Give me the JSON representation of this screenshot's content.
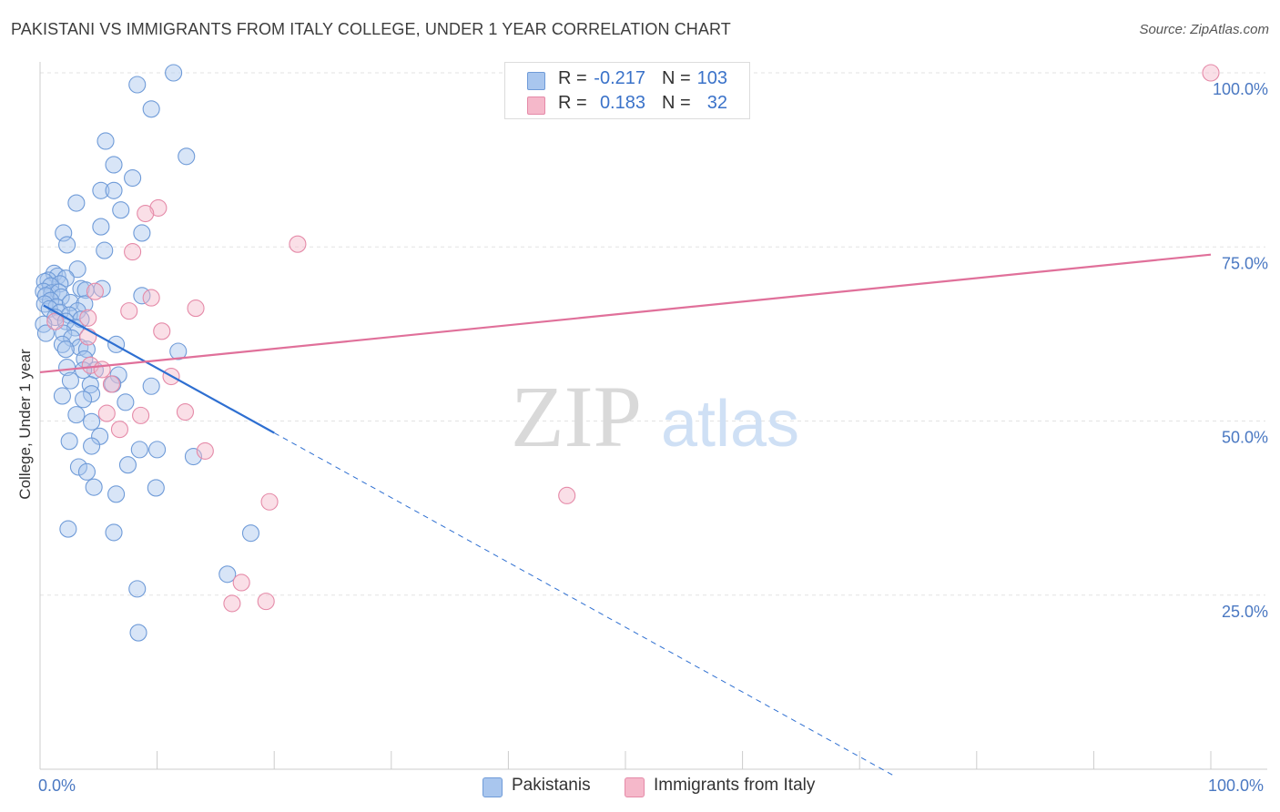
{
  "chart_data": {
    "type": "scatter",
    "title": "PAKISTANI VS IMMIGRANTS FROM ITALY COLLEGE, UNDER 1 YEAR CORRELATION CHART",
    "source": "Source: ZipAtlas.com",
    "xlabel": "",
    "ylabel": "College, Under 1 year",
    "xlim": [
      0,
      100
    ],
    "ylim": [
      0,
      100
    ],
    "x_tick_labels": [
      "0.0%",
      "100.0%"
    ],
    "y_ticks": [
      25,
      50,
      75,
      100
    ],
    "y_tick_labels": [
      "25.0%",
      "50.0%",
      "75.0%",
      "100.0%"
    ],
    "grid": true,
    "watermark": {
      "zip": "ZIP",
      "atlas": "atlas"
    },
    "legend_top": {
      "r_label": "R =",
      "n_label": "N =",
      "rows": [
        {
          "series": "Pakistanis",
          "r": "-0.217",
          "n": "103"
        },
        {
          "series": "Immigrants from Italy",
          "r": "0.183",
          "n": "32"
        }
      ]
    },
    "series": [
      {
        "name": "Pakistanis",
        "fill": "#a9c6ee",
        "stroke": "#6f9bd8",
        "trend_color": "#2e6fd1",
        "trend": {
          "x0": 0.3,
          "y0": 66.6,
          "x1": 20.0,
          "y1": 48.3,
          "dash_to_x": 73.0,
          "dash_to_y": -1.0
        },
        "points": [
          [
            11.4,
            100.0
          ],
          [
            8.3,
            98.3
          ],
          [
            9.5,
            94.8
          ],
          [
            5.6,
            90.2
          ],
          [
            12.5,
            88.0
          ],
          [
            6.3,
            86.8
          ],
          [
            7.9,
            84.9
          ],
          [
            5.2,
            83.1
          ],
          [
            6.3,
            83.1
          ],
          [
            3.1,
            81.3
          ],
          [
            6.9,
            80.3
          ],
          [
            5.2,
            77.9
          ],
          [
            2.0,
            77.0
          ],
          [
            8.7,
            77.0
          ],
          [
            2.3,
            75.3
          ],
          [
            5.5,
            74.5
          ],
          [
            3.2,
            71.8
          ],
          [
            1.2,
            71.2
          ],
          [
            1.5,
            70.8
          ],
          [
            2.2,
            70.5
          ],
          [
            0.7,
            70.2
          ],
          [
            0.4,
            70.0
          ],
          [
            1.7,
            69.7
          ],
          [
            0.9,
            69.4
          ],
          [
            3.5,
            69.0
          ],
          [
            5.3,
            69.0
          ],
          [
            3.9,
            68.8
          ],
          [
            0.3,
            68.6
          ],
          [
            1.0,
            68.4
          ],
          [
            1.6,
            68.5
          ],
          [
            0.5,
            68.0
          ],
          [
            8.7,
            68.0
          ],
          [
            1.8,
            67.8
          ],
          [
            0.9,
            67.3
          ],
          [
            0.4,
            66.8
          ],
          [
            1.4,
            66.4
          ],
          [
            0.8,
            66.1
          ],
          [
            2.6,
            67.0
          ],
          [
            3.8,
            66.8
          ],
          [
            3.2,
            65.8
          ],
          [
            1.7,
            65.6
          ],
          [
            2.5,
            65.2
          ],
          [
            1.3,
            64.9
          ],
          [
            3.5,
            64.6
          ],
          [
            2.2,
            64.3
          ],
          [
            0.3,
            63.9
          ],
          [
            3.0,
            63.4
          ],
          [
            2.0,
            62.6
          ],
          [
            0.5,
            62.6
          ],
          [
            2.7,
            61.9
          ],
          [
            1.9,
            61.0
          ],
          [
            6.5,
            61.0
          ],
          [
            3.4,
            60.6
          ],
          [
            2.2,
            60.3
          ],
          [
            4.0,
            60.3
          ],
          [
            11.8,
            60.0
          ],
          [
            3.8,
            58.9
          ],
          [
            2.3,
            57.7
          ],
          [
            4.7,
            57.3
          ],
          [
            3.7,
            57.3
          ],
          [
            6.7,
            56.6
          ],
          [
            2.6,
            55.8
          ],
          [
            4.3,
            55.2
          ],
          [
            6.2,
            55.3
          ],
          [
            9.5,
            55.0
          ],
          [
            4.4,
            53.9
          ],
          [
            1.9,
            53.6
          ],
          [
            3.7,
            53.1
          ],
          [
            7.3,
            52.7
          ],
          [
            3.1,
            50.9
          ],
          [
            4.4,
            49.9
          ],
          [
            5.1,
            47.8
          ],
          [
            2.5,
            47.1
          ],
          [
            8.5,
            45.9
          ],
          [
            10.0,
            45.9
          ],
          [
            4.4,
            46.4
          ],
          [
            13.1,
            44.9
          ],
          [
            7.5,
            43.7
          ],
          [
            3.3,
            43.4
          ],
          [
            4.0,
            42.7
          ],
          [
            4.6,
            40.5
          ],
          [
            9.9,
            40.4
          ],
          [
            6.5,
            39.5
          ],
          [
            2.4,
            34.5
          ],
          [
            6.3,
            34.0
          ],
          [
            18.0,
            33.9
          ],
          [
            16.0,
            28.0
          ],
          [
            8.3,
            25.9
          ],
          [
            8.4,
            19.6
          ]
        ]
      },
      {
        "name": "Immigrants from Italy",
        "fill": "#f5b8ca",
        "stroke": "#e58aa8",
        "trend_color": "#e0709a",
        "trend": {
          "x0": 0.0,
          "y0": 57.0,
          "x1": 100.0,
          "y1": 73.9
        },
        "points": [
          [
            100.0,
            100.0
          ],
          [
            10.1,
            80.6
          ],
          [
            9.0,
            79.8
          ],
          [
            22.0,
            75.4
          ],
          [
            7.9,
            74.3
          ],
          [
            4.7,
            68.6
          ],
          [
            9.5,
            67.7
          ],
          [
            13.3,
            66.2
          ],
          [
            7.6,
            65.8
          ],
          [
            4.1,
            64.8
          ],
          [
            1.3,
            64.3
          ],
          [
            10.4,
            62.9
          ],
          [
            4.1,
            62.1
          ],
          [
            4.3,
            58.0
          ],
          [
            5.3,
            57.4
          ],
          [
            11.2,
            56.4
          ],
          [
            6.1,
            55.3
          ],
          [
            12.4,
            51.3
          ],
          [
            5.7,
            51.1
          ],
          [
            8.6,
            50.8
          ],
          [
            6.8,
            48.8
          ],
          [
            14.1,
            45.7
          ],
          [
            19.6,
            38.4
          ],
          [
            45.0,
            39.3
          ],
          [
            17.2,
            26.8
          ],
          [
            19.3,
            24.1
          ],
          [
            16.4,
            23.8
          ]
        ]
      }
    ]
  }
}
